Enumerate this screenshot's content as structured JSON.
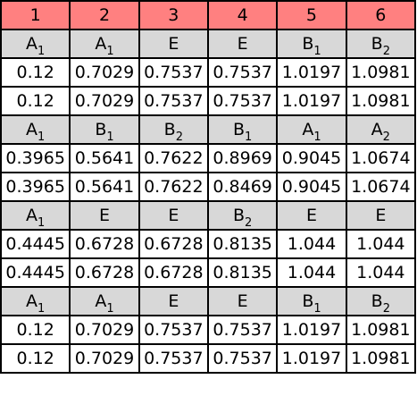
{
  "table": {
    "header": [
      "1",
      "2",
      "3",
      "4",
      "5",
      "6"
    ],
    "blocks": [
      {
        "symbols": [
          {
            "base": "A",
            "sub": "1"
          },
          {
            "base": "A",
            "sub": "1"
          },
          {
            "base": "E",
            "sub": ""
          },
          {
            "base": "E",
            "sub": ""
          },
          {
            "base": "B",
            "sub": "1"
          },
          {
            "base": "B",
            "sub": "2"
          }
        ],
        "rows": [
          [
            "0.12",
            "0.7029",
            "0.7537",
            "0.7537",
            "1.0197",
            "1.0981"
          ],
          [
            "0.12",
            "0.7029",
            "0.7537",
            "0.7537",
            "1.0197",
            "1.0981"
          ]
        ]
      },
      {
        "symbols": [
          {
            "base": "A",
            "sub": "1"
          },
          {
            "base": "B",
            "sub": "1"
          },
          {
            "base": "B",
            "sub": "2"
          },
          {
            "base": "B",
            "sub": "1"
          },
          {
            "base": "A",
            "sub": "1"
          },
          {
            "base": "A",
            "sub": "2"
          }
        ],
        "rows": [
          [
            "0.3965",
            "0.5641",
            "0.7622",
            "0.8969",
            "0.9045",
            "1.0674"
          ],
          [
            "0.3965",
            "0.5641",
            "0.7622",
            "0.8469",
            "0.9045",
            "1.0674"
          ]
        ]
      },
      {
        "symbols": [
          {
            "base": "A",
            "sub": "1"
          },
          {
            "base": "E",
            "sub": ""
          },
          {
            "base": "E",
            "sub": ""
          },
          {
            "base": "B",
            "sub": "2"
          },
          {
            "base": "E",
            "sub": ""
          },
          {
            "base": "E",
            "sub": ""
          }
        ],
        "rows": [
          [
            "0.4445",
            "0.6728",
            "0.6728",
            "0.8135",
            "1.044",
            "1.044"
          ],
          [
            "0.4445",
            "0.6728",
            "0.6728",
            "0.8135",
            "1.044",
            "1.044"
          ]
        ]
      },
      {
        "symbols": [
          {
            "base": "A",
            "sub": "1"
          },
          {
            "base": "A",
            "sub": "1"
          },
          {
            "base": "E",
            "sub": ""
          },
          {
            "base": "E",
            "sub": ""
          },
          {
            "base": "B",
            "sub": "1"
          },
          {
            "base": "B",
            "sub": "2"
          }
        ],
        "rows": [
          [
            "0.12",
            "0.7029",
            "0.7537",
            "0.7537",
            "1.0197",
            "1.0981"
          ],
          [
            "0.12",
            "0.7029",
            "0.7537",
            "0.7537",
            "1.0197",
            "1.0981"
          ]
        ]
      }
    ]
  },
  "colors": {
    "header_bg": "#ff8080",
    "symbol_row_bg": "#d8d8d8",
    "value_bg": "#ffffff",
    "border": "#000000"
  }
}
